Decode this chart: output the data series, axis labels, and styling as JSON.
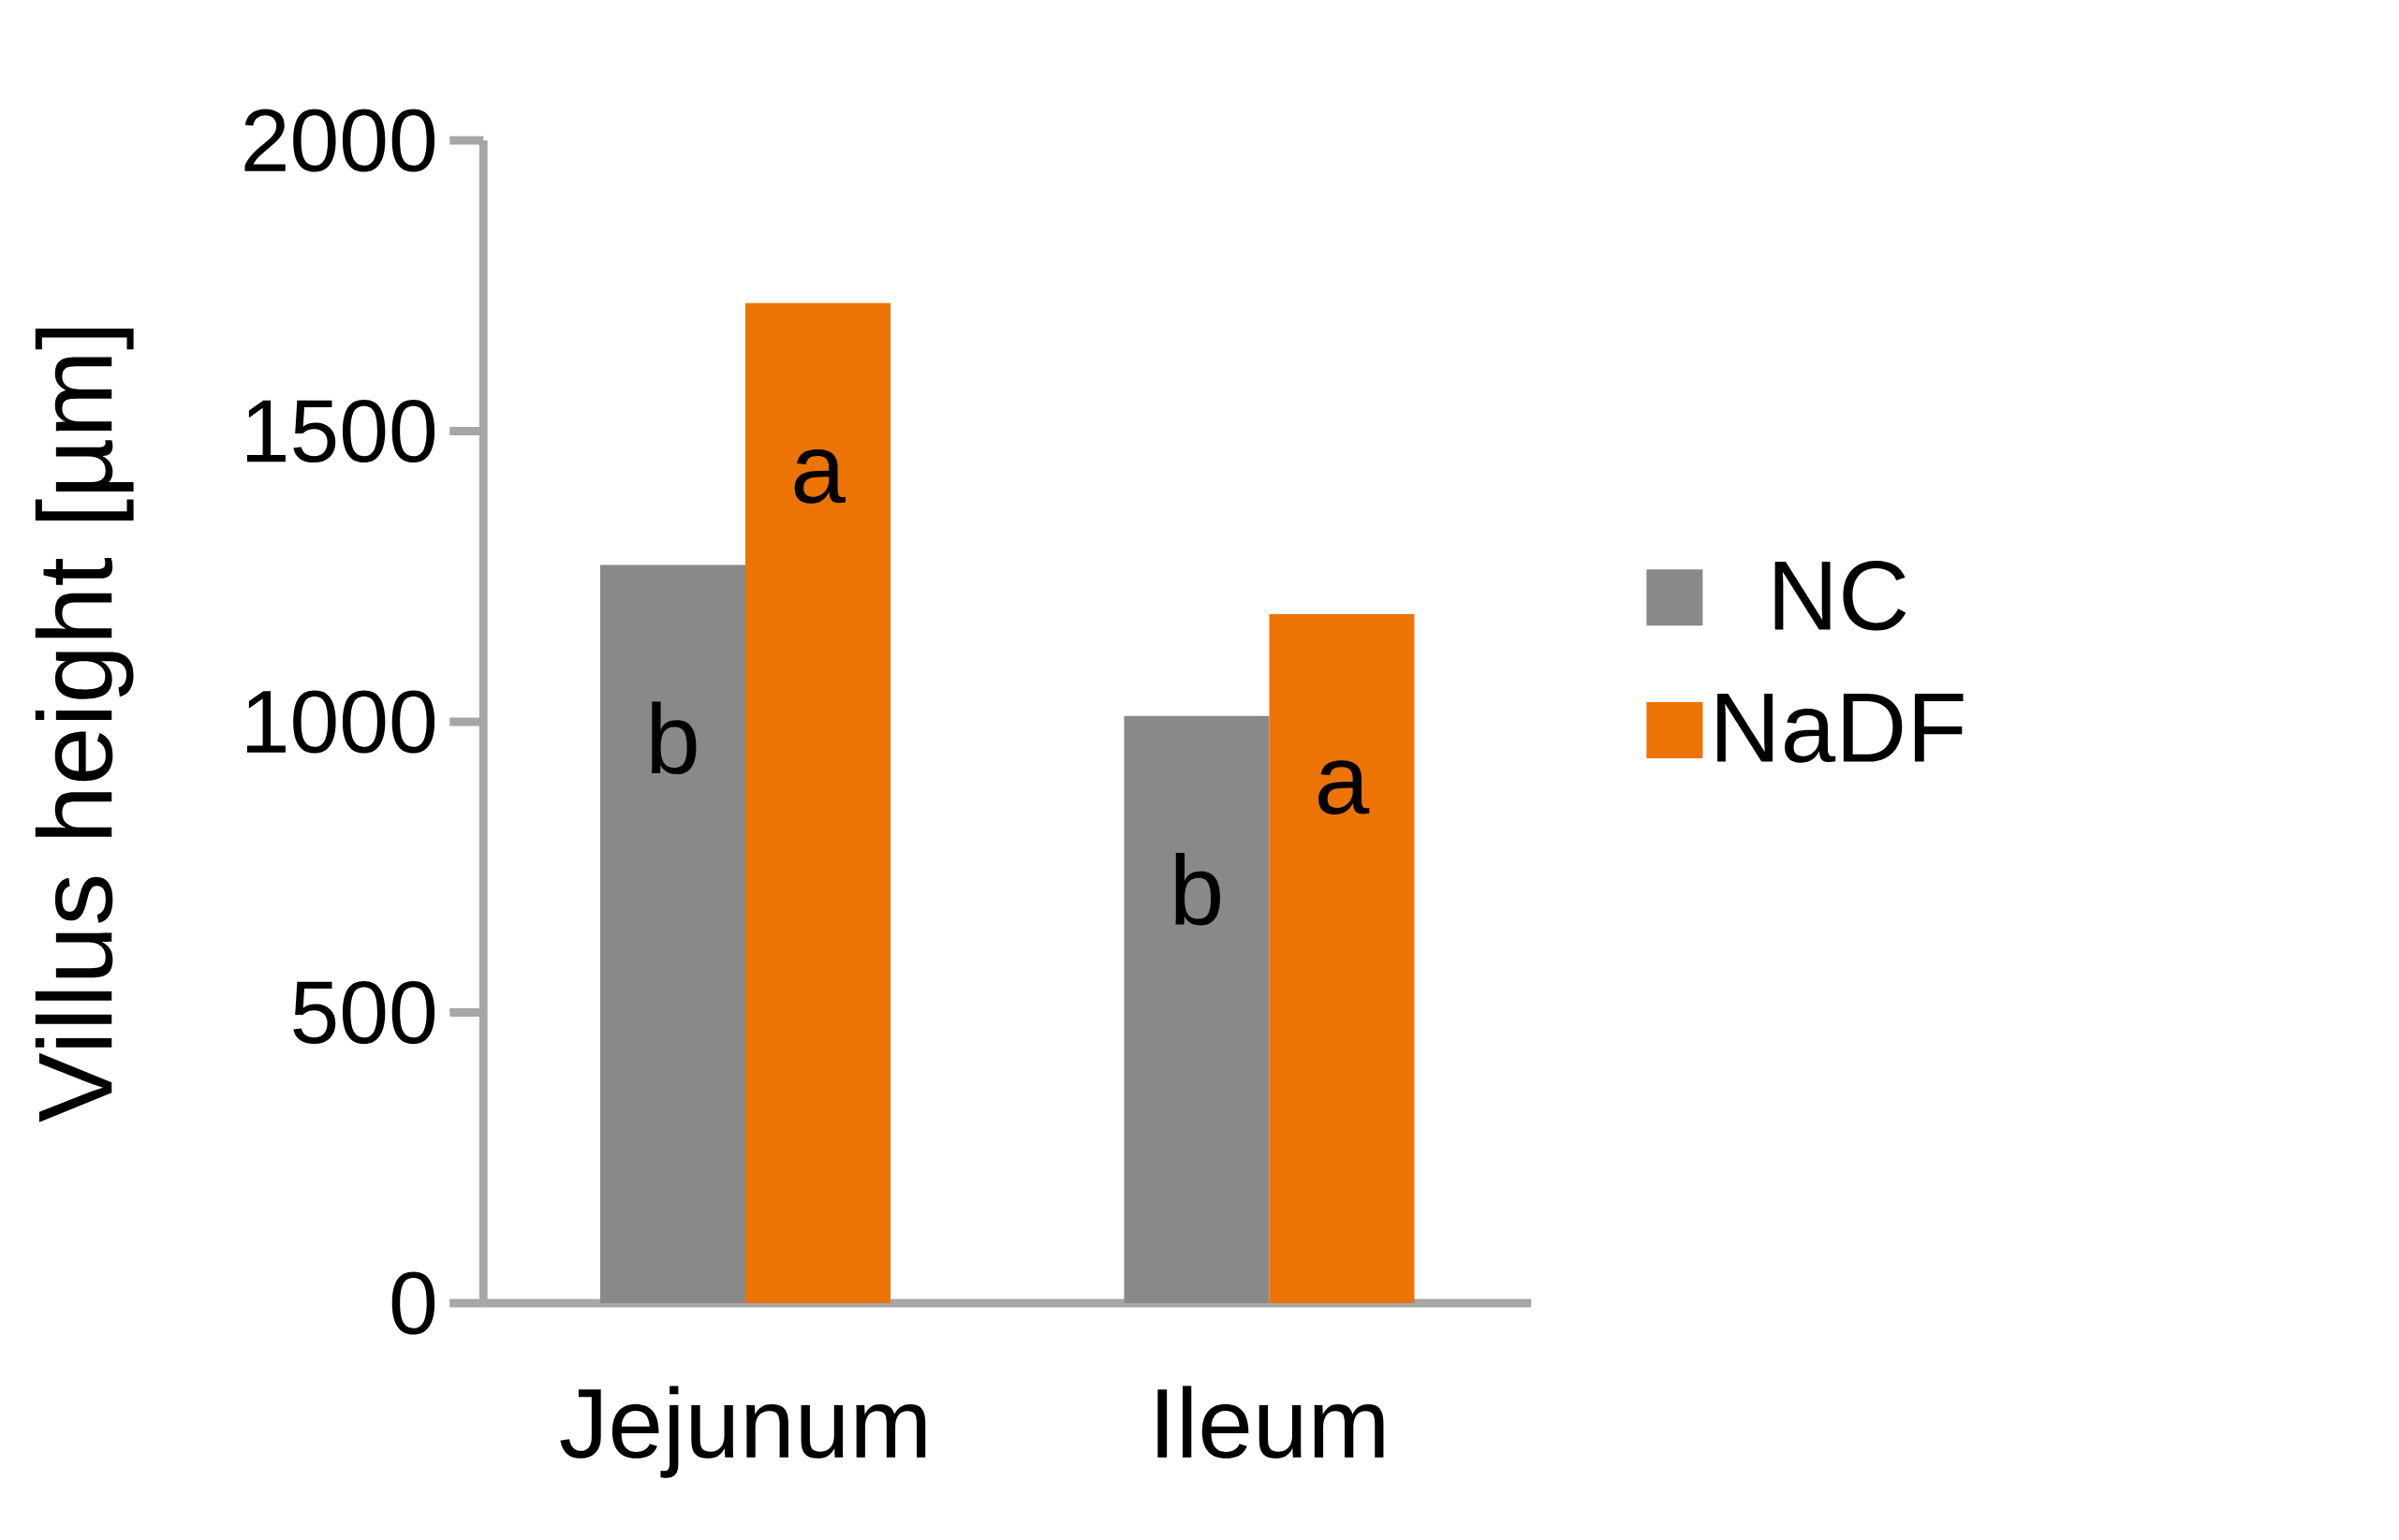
{
  "chart_data": {
    "type": "bar",
    "ylabel": "Villus height [µm]",
    "categories": [
      "Jejunum",
      "Ileum"
    ],
    "series": [
      {
        "name": "NC",
        "color": "#898989",
        "values": [
          1270,
          1010
        ],
        "value_labels": [
          "b",
          "b"
        ]
      },
      {
        "name": "NaDF",
        "color": "#ec7405",
        "values": [
          1720,
          1185
        ],
        "value_labels": [
          "a",
          "a"
        ]
      }
    ],
    "ylim": [
      0,
      2000
    ],
    "yticks": [
      0,
      500,
      1000,
      1500,
      2000
    ],
    "grid": false,
    "legend": "right"
  }
}
